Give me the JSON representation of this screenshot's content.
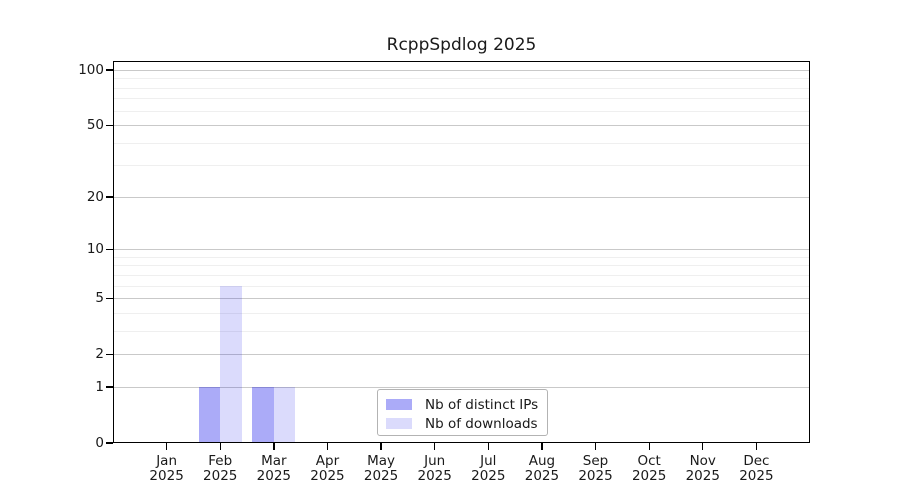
{
  "chart_data": {
    "type": "bar",
    "title": "RcppSpdlog 2025",
    "x_categories": [
      "Jan",
      "Feb",
      "Mar",
      "Apr",
      "May",
      "Jun",
      "Jul",
      "Aug",
      "Sep",
      "Oct",
      "Nov",
      "Dec"
    ],
    "x_year": "2025",
    "series": [
      {
        "name": "Nb of distinct IPs",
        "color": "rgba(10,10,235,0.34)",
        "values": [
          0,
          1,
          1,
          0,
          0,
          0,
          0,
          0,
          0,
          0,
          0,
          0
        ]
      },
      {
        "name": "Nb of downloads",
        "color": "rgba(10,10,235,0.145)",
        "values": [
          0,
          6,
          1,
          0,
          0,
          0,
          0,
          0,
          0,
          0,
          0,
          0
        ]
      }
    ],
    "xlabel": "",
    "ylabel": "",
    "y_scale": "log1p",
    "ylim": [
      0,
      100
    ],
    "y_ticks": [
      0,
      1,
      2,
      5,
      10,
      20,
      50,
      100
    ],
    "y_minor_gridlines": [
      3,
      4,
      6,
      7,
      8,
      9,
      30,
      40,
      60,
      70,
      80,
      90
    ],
    "grid": "horizontal",
    "legend_position": "bottom-center-inside"
  },
  "colors": {
    "background": "#ffffff",
    "axis": "#000000",
    "text": "#1a1a1a",
    "major_grid": "#c9c9c9",
    "minor_grid": "#efefef",
    "legend_border": "#b3b3b3"
  }
}
